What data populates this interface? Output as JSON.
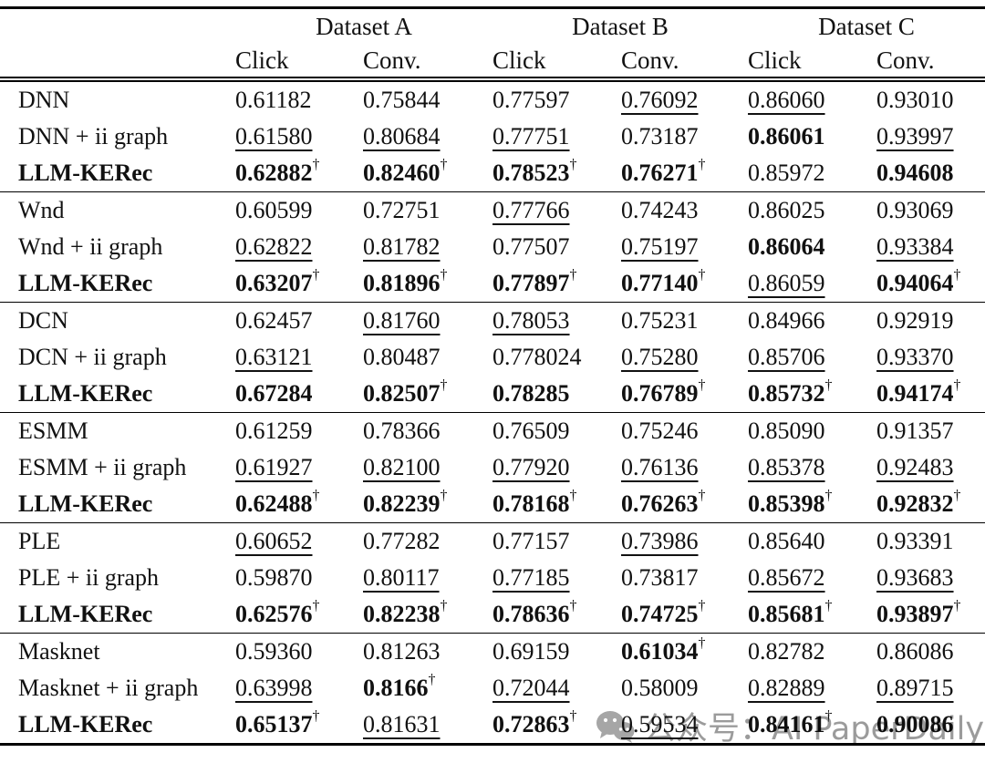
{
  "table": {
    "dagger": "†",
    "dataset_headers": [
      "Dataset A",
      "Dataset B",
      "Dataset C"
    ],
    "metric_headers": [
      "Click",
      "Conv.",
      "Click",
      "Conv.",
      "Click",
      "Conv."
    ],
    "groups": [
      {
        "rows": [
          {
            "label": "DNN",
            "cells": [
              {
                "v": "0.61182"
              },
              {
                "v": "0.75844"
              },
              {
                "v": "0.77597"
              },
              {
                "v": "0.76092",
                "u": 1
              },
              {
                "v": "0.86060",
                "u": 1
              },
              {
                "v": "0.93010"
              }
            ]
          },
          {
            "label": "DNN + ii graph",
            "cells": [
              {
                "v": "0.61580",
                "u": 1
              },
              {
                "v": "0.80684",
                "u": 1
              },
              {
                "v": "0.77751",
                "u": 1
              },
              {
                "v": "0.73187"
              },
              {
                "v": "0.86061",
                "b": 1
              },
              {
                "v": "0.93997",
                "u": 1
              }
            ]
          },
          {
            "label": "LLM-KERec",
            "b": 1,
            "cells": [
              {
                "v": "0.62882",
                "b": 1,
                "d": 1
              },
              {
                "v": "0.82460",
                "b": 1,
                "d": 1
              },
              {
                "v": "0.78523",
                "b": 1,
                "d": 1
              },
              {
                "v": "0.76271",
                "b": 1,
                "d": 1
              },
              {
                "v": "0.85972"
              },
              {
                "v": "0.94608",
                "b": 1
              }
            ]
          }
        ]
      },
      {
        "rows": [
          {
            "label": "Wnd",
            "cells": [
              {
                "v": "0.60599"
              },
              {
                "v": "0.72751"
              },
              {
                "v": "0.77766",
                "u": 1
              },
              {
                "v": "0.74243"
              },
              {
                "v": "0.86025"
              },
              {
                "v": "0.93069"
              }
            ]
          },
          {
            "label": "Wnd + ii graph",
            "cells": [
              {
                "v": "0.62822",
                "u": 1
              },
              {
                "v": "0.81782",
                "u": 1
              },
              {
                "v": "0.77507"
              },
              {
                "v": "0.75197",
                "u": 1
              },
              {
                "v": "0.86064",
                "b": 1
              },
              {
                "v": "0.93384",
                "u": 1
              }
            ]
          },
          {
            "label": "LLM-KERec",
            "b": 1,
            "cells": [
              {
                "v": "0.63207",
                "b": 1,
                "d": 1
              },
              {
                "v": "0.81896",
                "b": 1,
                "d": 1
              },
              {
                "v": "0.77897",
                "b": 1,
                "d": 1
              },
              {
                "v": "0.77140",
                "b": 1,
                "d": 1
              },
              {
                "v": "0.86059",
                "u": 1
              },
              {
                "v": "0.94064",
                "b": 1,
                "d": 1
              }
            ]
          }
        ]
      },
      {
        "rows": [
          {
            "label": "DCN",
            "cells": [
              {
                "v": "0.62457"
              },
              {
                "v": "0.81760",
                "u": 1
              },
              {
                "v": "0.78053",
                "u": 1
              },
              {
                "v": "0.75231"
              },
              {
                "v": "0.84966"
              },
              {
                "v": "0.92919"
              }
            ]
          },
          {
            "label": "DCN + ii graph",
            "cells": [
              {
                "v": "0.63121",
                "u": 1
              },
              {
                "v": "0.80487"
              },
              {
                "v": "0.778024"
              },
              {
                "v": "0.75280",
                "u": 1
              },
              {
                "v": "0.85706",
                "u": 1
              },
              {
                "v": "0.93370",
                "u": 1
              }
            ]
          },
          {
            "label": "LLM-KERec",
            "b": 1,
            "cells": [
              {
                "v": "0.67284",
                "b": 1
              },
              {
                "v": "0.82507",
                "b": 1,
                "d": 1
              },
              {
                "v": "0.78285",
                "b": 1
              },
              {
                "v": "0.76789",
                "b": 1,
                "d": 1
              },
              {
                "v": "0.85732",
                "b": 1,
                "d": 1
              },
              {
                "v": "0.94174",
                "b": 1,
                "d": 1
              }
            ]
          }
        ]
      },
      {
        "rows": [
          {
            "label": "ESMM",
            "cells": [
              {
                "v": "0.61259"
              },
              {
                "v": "0.78366"
              },
              {
                "v": "0.76509"
              },
              {
                "v": "0.75246"
              },
              {
                "v": "0.85090"
              },
              {
                "v": "0.91357"
              }
            ]
          },
          {
            "label": "ESMM + ii graph",
            "cells": [
              {
                "v": "0.61927",
                "u": 1
              },
              {
                "v": "0.82100",
                "u": 1
              },
              {
                "v": "0.77920",
                "u": 1
              },
              {
                "v": "0.76136",
                "u": 1
              },
              {
                "v": "0.85378",
                "u": 1
              },
              {
                "v": "0.92483",
                "u": 1
              }
            ]
          },
          {
            "label": "LLM-KERec",
            "b": 1,
            "cells": [
              {
                "v": "0.62488",
                "b": 1,
                "d": 1
              },
              {
                "v": "0.82239",
                "b": 1,
                "d": 1
              },
              {
                "v": "0.78168",
                "b": 1,
                "d": 1
              },
              {
                "v": "0.76263",
                "b": 1,
                "d": 1
              },
              {
                "v": "0.85398",
                "b": 1,
                "d": 1
              },
              {
                "v": "0.92832",
                "b": 1,
                "d": 1
              }
            ]
          }
        ]
      },
      {
        "rows": [
          {
            "label": "PLE",
            "cells": [
              {
                "v": "0.60652",
                "u": 1
              },
              {
                "v": "0.77282"
              },
              {
                "v": "0.77157"
              },
              {
                "v": "0.73986",
                "u": 1
              },
              {
                "v": "0.85640"
              },
              {
                "v": "0.93391"
              }
            ]
          },
          {
            "label": "PLE + ii graph",
            "cells": [
              {
                "v": "0.59870"
              },
              {
                "v": "0.80117",
                "u": 1
              },
              {
                "v": "0.77185",
                "u": 1
              },
              {
                "v": "0.73817"
              },
              {
                "v": "0.85672",
                "u": 1
              },
              {
                "v": "0.93683",
                "u": 1
              }
            ]
          },
          {
            "label": "LLM-KERec",
            "b": 1,
            "cells": [
              {
                "v": "0.62576",
                "b": 1,
                "d": 1
              },
              {
                "v": "0.82238",
                "b": 1,
                "d": 1
              },
              {
                "v": "0.78636",
                "b": 1,
                "d": 1
              },
              {
                "v": "0.74725",
                "b": 1,
                "d": 1
              },
              {
                "v": "0.85681",
                "b": 1,
                "d": 1
              },
              {
                "v": "0.93897",
                "b": 1,
                "d": 1
              }
            ]
          }
        ]
      },
      {
        "rows": [
          {
            "label": "Masknet",
            "cells": [
              {
                "v": "0.59360"
              },
              {
                "v": "0.81263"
              },
              {
                "v": "0.69159"
              },
              {
                "v": "0.61034",
                "b": 1,
                "d": 1
              },
              {
                "v": "0.82782"
              },
              {
                "v": "0.86086"
              }
            ]
          },
          {
            "label": "Masknet + ii graph",
            "cells": [
              {
                "v": "0.63998",
                "u": 1
              },
              {
                "v": "0.8166",
                "b": 1,
                "d": 1
              },
              {
                "v": "0.72044",
                "u": 1
              },
              {
                "v": "0.58009"
              },
              {
                "v": "0.82889",
                "u": 1
              },
              {
                "v": "0.89715",
                "u": 1
              }
            ]
          },
          {
            "label": "LLM-KERec",
            "b": 1,
            "cells": [
              {
                "v": "0.65137",
                "b": 1,
                "d": 1
              },
              {
                "v": "0.81631",
                "u": 1
              },
              {
                "v": "0.72863",
                "b": 1,
                "d": 1
              },
              {
                "v": "0.59534",
                "u": 1
              },
              {
                "v": "0.84161",
                "b": 1,
                "d": 1
              },
              {
                "v": "0.90086",
                "b": 1
              }
            ]
          }
        ]
      }
    ]
  },
  "watermark": {
    "icon": "wechat-icon",
    "text": "公众号：AI PaperDaily",
    "color": "#9b9b9b"
  }
}
